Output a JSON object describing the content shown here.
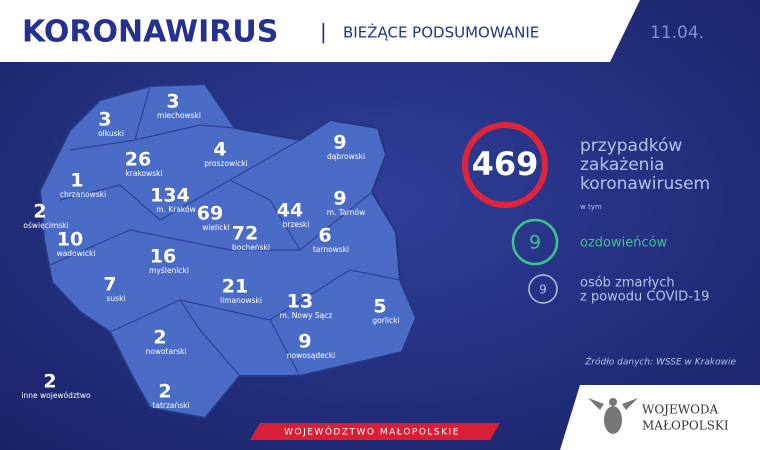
{
  "header": {
    "title": "KORONAWIRUS",
    "separator": "|",
    "subtitle": "BIEŻĄCE PODSUMOWANIE",
    "date": "11.04."
  },
  "districts": [
    {
      "count": 3,
      "name": "olkuski"
    },
    {
      "count": 3,
      "name": "miechowski"
    },
    {
      "count": 26,
      "name": "krakowski"
    },
    {
      "count": 4,
      "name": "proszowicki"
    },
    {
      "count": 9,
      "name": "dąbrowski"
    },
    {
      "count": 1,
      "name": "chrzanowski"
    },
    {
      "count": 134,
      "name": "m. Kraków"
    },
    {
      "count": 69,
      "name": "wielicki"
    },
    {
      "count": 72,
      "name": "bocheński"
    },
    {
      "count": 44,
      "name": "brzeski"
    },
    {
      "count": 9,
      "name": "m. Tarnów"
    },
    {
      "count": 2,
      "name": "oświęcimski"
    },
    {
      "count": 10,
      "name": "wadowicki"
    },
    {
      "count": 16,
      "name": "myślenicki"
    },
    {
      "count": 6,
      "name": "tarnowski"
    },
    {
      "count": 7,
      "name": "suski"
    },
    {
      "count": 21,
      "name": "limanowski"
    },
    {
      "count": 13,
      "name": "m. Nowy Sącz"
    },
    {
      "count": 5,
      "name": "gorlicki"
    },
    {
      "count": 9,
      "name": "nowosądecki"
    },
    {
      "count": 2,
      "name": "nowotarski"
    },
    {
      "count": 2,
      "name": "inne województwo"
    },
    {
      "count": 2,
      "name": "tatrzański"
    }
  ],
  "summary": {
    "cases": 469,
    "cases_label": [
      "przypadków",
      "zakażenia",
      "koronawirusem"
    ],
    "of_which": "w tym",
    "recovered": 9,
    "recovered_label": "ozdowieńców",
    "deaths": 9,
    "deaths_label": [
      "osób zmarłych",
      "z powodu COVID-19"
    ]
  },
  "source": "Źródło danych: WSSE w Krakowie",
  "footer": {
    "region": "WOJEWÓDZTWO MAŁOPOLSKIE",
    "office": [
      "WOJEWODA",
      "MAŁOPOLSKI"
    ]
  }
}
